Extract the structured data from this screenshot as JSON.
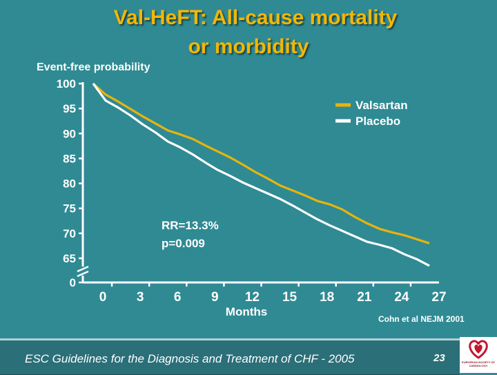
{
  "slide": {
    "title_line1": "Val-HeFT: All-cause mortality",
    "title_line2": "or morbidity",
    "footer": "ESC Guidelines for the Diagnosis and Treatment of CHF - 2005",
    "page_number": "23",
    "logo_text": "EUROPEAN SOCIETY OF CARDIOLOGY",
    "title_color": "#f2b705",
    "background_color": "#2f8a93"
  },
  "chart_data": {
    "type": "line",
    "title": "",
    "xlabel": "Months",
    "ylabel": "Event-free probability",
    "x_ticks": [
      0,
      3,
      6,
      9,
      12,
      15,
      18,
      21,
      24,
      27
    ],
    "y_ticks": [
      0,
      65,
      70,
      75,
      80,
      85,
      90,
      95,
      100
    ],
    "y_axis_break": true,
    "xlim": [
      0,
      27
    ],
    "ylim_upper": [
      65,
      100
    ],
    "legend_position": "top-right",
    "annotation": [
      "RR=13.3%",
      "p=0.009"
    ],
    "source": "Cohn et al NEJM 2001",
    "series": [
      {
        "name": "Valsartan",
        "color": "#e8b40c",
        "x": [
          0,
          1,
          2,
          3,
          4,
          5,
          6,
          7,
          8,
          9,
          10,
          11,
          12,
          13,
          14,
          15,
          16,
          17,
          18,
          19,
          20,
          21,
          22,
          23,
          24,
          25,
          26,
          27
        ],
        "y": [
          100,
          97.8,
          96.4,
          94.9,
          93.4,
          92,
          90.6,
          89.8,
          88.9,
          87.6,
          86.4,
          85.2,
          83.8,
          82.3,
          81,
          79.6,
          78.6,
          77.6,
          76.5,
          75.8,
          74.8,
          73.3,
          72,
          70.9,
          70.2,
          69.6,
          68.8,
          68
        ]
      },
      {
        "name": "Placebo",
        "color": "#ffffff",
        "x": [
          0,
          1,
          2,
          3,
          4,
          5,
          6,
          7,
          8,
          9,
          10,
          11,
          12,
          13,
          14,
          15,
          16,
          17,
          18,
          19,
          20,
          21,
          22,
          23,
          24,
          25,
          26,
          27
        ],
        "y": [
          100,
          96.6,
          95.2,
          93.6,
          91.8,
          90.2,
          88.4,
          87.2,
          85.8,
          84.2,
          82.7,
          81.5,
          80.2,
          79.1,
          78,
          76.9,
          75.6,
          74.2,
          72.8,
          71.6,
          70.5,
          69.4,
          68.3,
          67.7,
          67,
          65.8,
          64.8,
          63.5
        ]
      }
    ]
  }
}
